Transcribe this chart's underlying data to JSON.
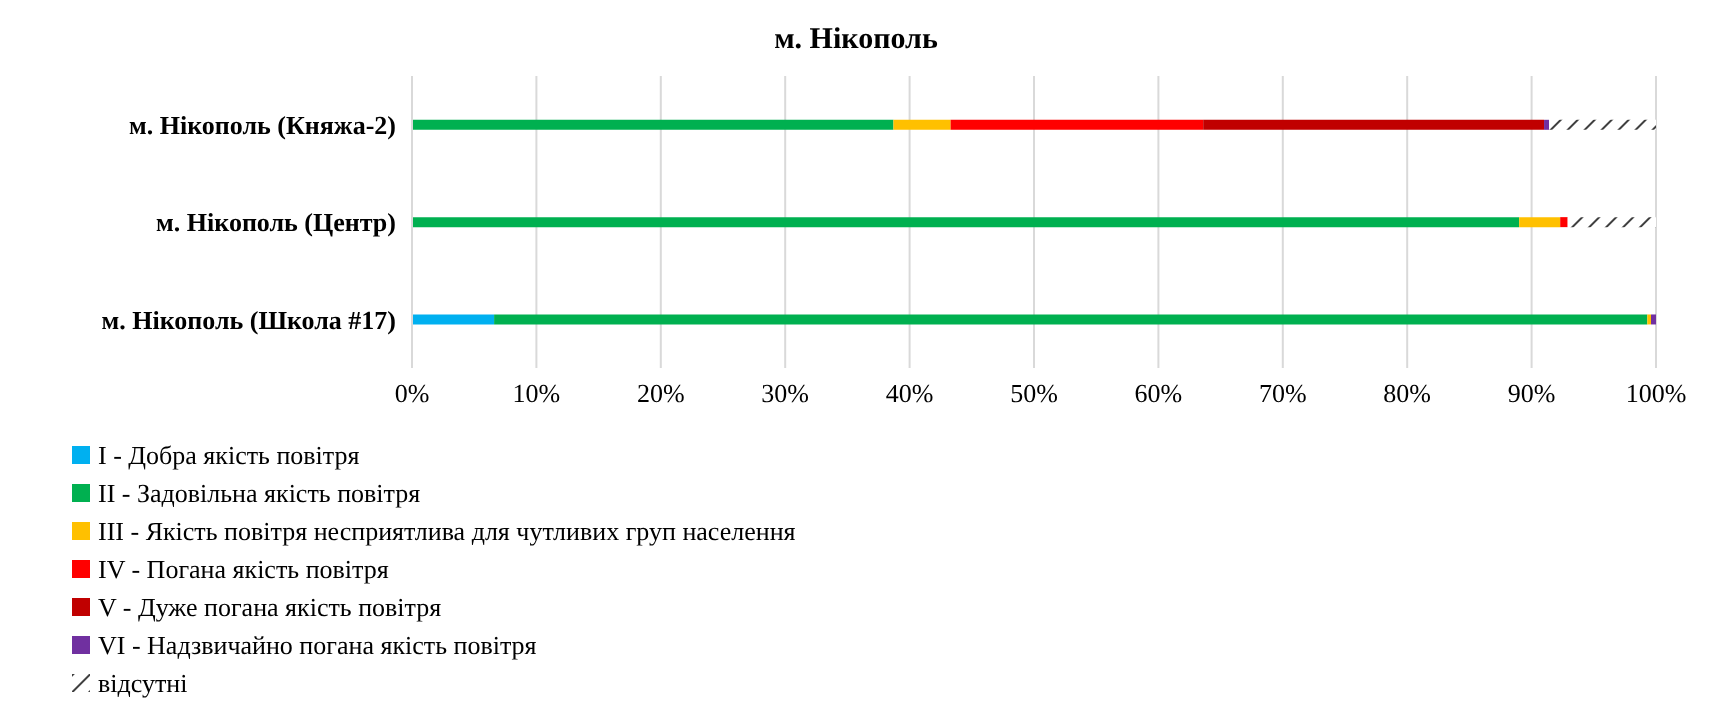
{
  "chart_data": {
    "type": "bar",
    "orientation": "horizontal",
    "stacked": true,
    "title": "м. Нікополь",
    "categories": [
      "м. Нікополь (Княжа-2)",
      "м. Нікополь (Центр)",
      "м. Нікополь (Школа #17)"
    ],
    "series": [
      {
        "name": "I - Добра якість повітря",
        "color": "#00b0f0",
        "values": [
          0,
          0,
          6.6
        ]
      },
      {
        "name": "II - Задовільна якість повітря",
        "color": "#00b050",
        "values": [
          38.7,
          89.0,
          92.7
        ]
      },
      {
        "name": "III - Якість повітря несприятлива для чутливих груп населення",
        "color": "#ffc000",
        "values": [
          4.6,
          3.3,
          0.3
        ]
      },
      {
        "name": "IV - Погана якість повітря",
        "color": "#ff0000",
        "values": [
          20.3,
          0.6,
          0
        ]
      },
      {
        "name": "V - Дуже погана якість повітря",
        "color": "#c00000",
        "values": [
          27.4,
          0,
          0
        ]
      },
      {
        "name": "VI - Надзвичайно погана якість повітря",
        "color": "#7030a0",
        "values": [
          0.4,
          0,
          0.4
        ]
      },
      {
        "name": "відсутні",
        "color": "#404040",
        "values": [
          8.6,
          7.1,
          0
        ]
      }
    ],
    "xlim": [
      0,
      100
    ],
    "xticks": [
      {
        "value": 0,
        "label": "0%"
      },
      {
        "value": 10,
        "label": "10%"
      },
      {
        "value": 20,
        "label": "20%"
      },
      {
        "value": 30,
        "label": "30%"
      },
      {
        "value": 40,
        "label": "40%"
      },
      {
        "value": 50,
        "label": "50%"
      },
      {
        "value": 60,
        "label": "60%"
      },
      {
        "value": 70,
        "label": "70%"
      },
      {
        "value": 80,
        "label": "80%"
      },
      {
        "value": 90,
        "label": "90%"
      },
      {
        "value": 100,
        "label": "100%"
      }
    ],
    "grid": "x",
    "legend": "bottom left"
  }
}
